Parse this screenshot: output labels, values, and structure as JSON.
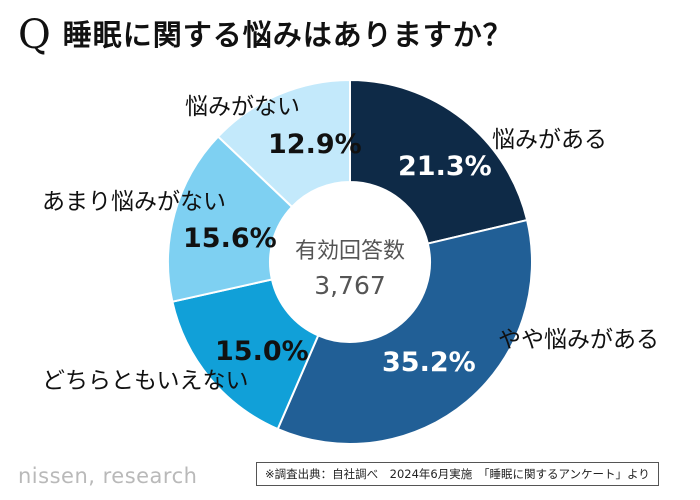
{
  "header": {
    "q_mark": "Q",
    "title": "睡眠に関する悩みはありますか？"
  },
  "center": {
    "title": "有効回答数",
    "count": "3,767"
  },
  "chart_data": {
    "type": "pie",
    "title": "睡眠に関する悩みはありますか？",
    "total_responses": 3767,
    "categories": [
      "悩みがある",
      "やや悩みがある",
      "どちらともいえない",
      "あまり悩みがない",
      "悩みがない"
    ],
    "values": [
      21.3,
      35.2,
      15.0,
      15.6,
      12.9
    ],
    "labels": [
      "21.3%",
      "35.2%",
      "15.0%",
      "15.6%",
      "12.9%"
    ],
    "colors": [
      "#0e2a47",
      "#215f96",
      "#11a0d8",
      "#7ed0f2",
      "#c3e9fb"
    ]
  },
  "footer": {
    "logo": "nissen, research",
    "source": "※調査出典：自社調べ　2024年6月実施　「睡眠に関するアンケート」より"
  }
}
